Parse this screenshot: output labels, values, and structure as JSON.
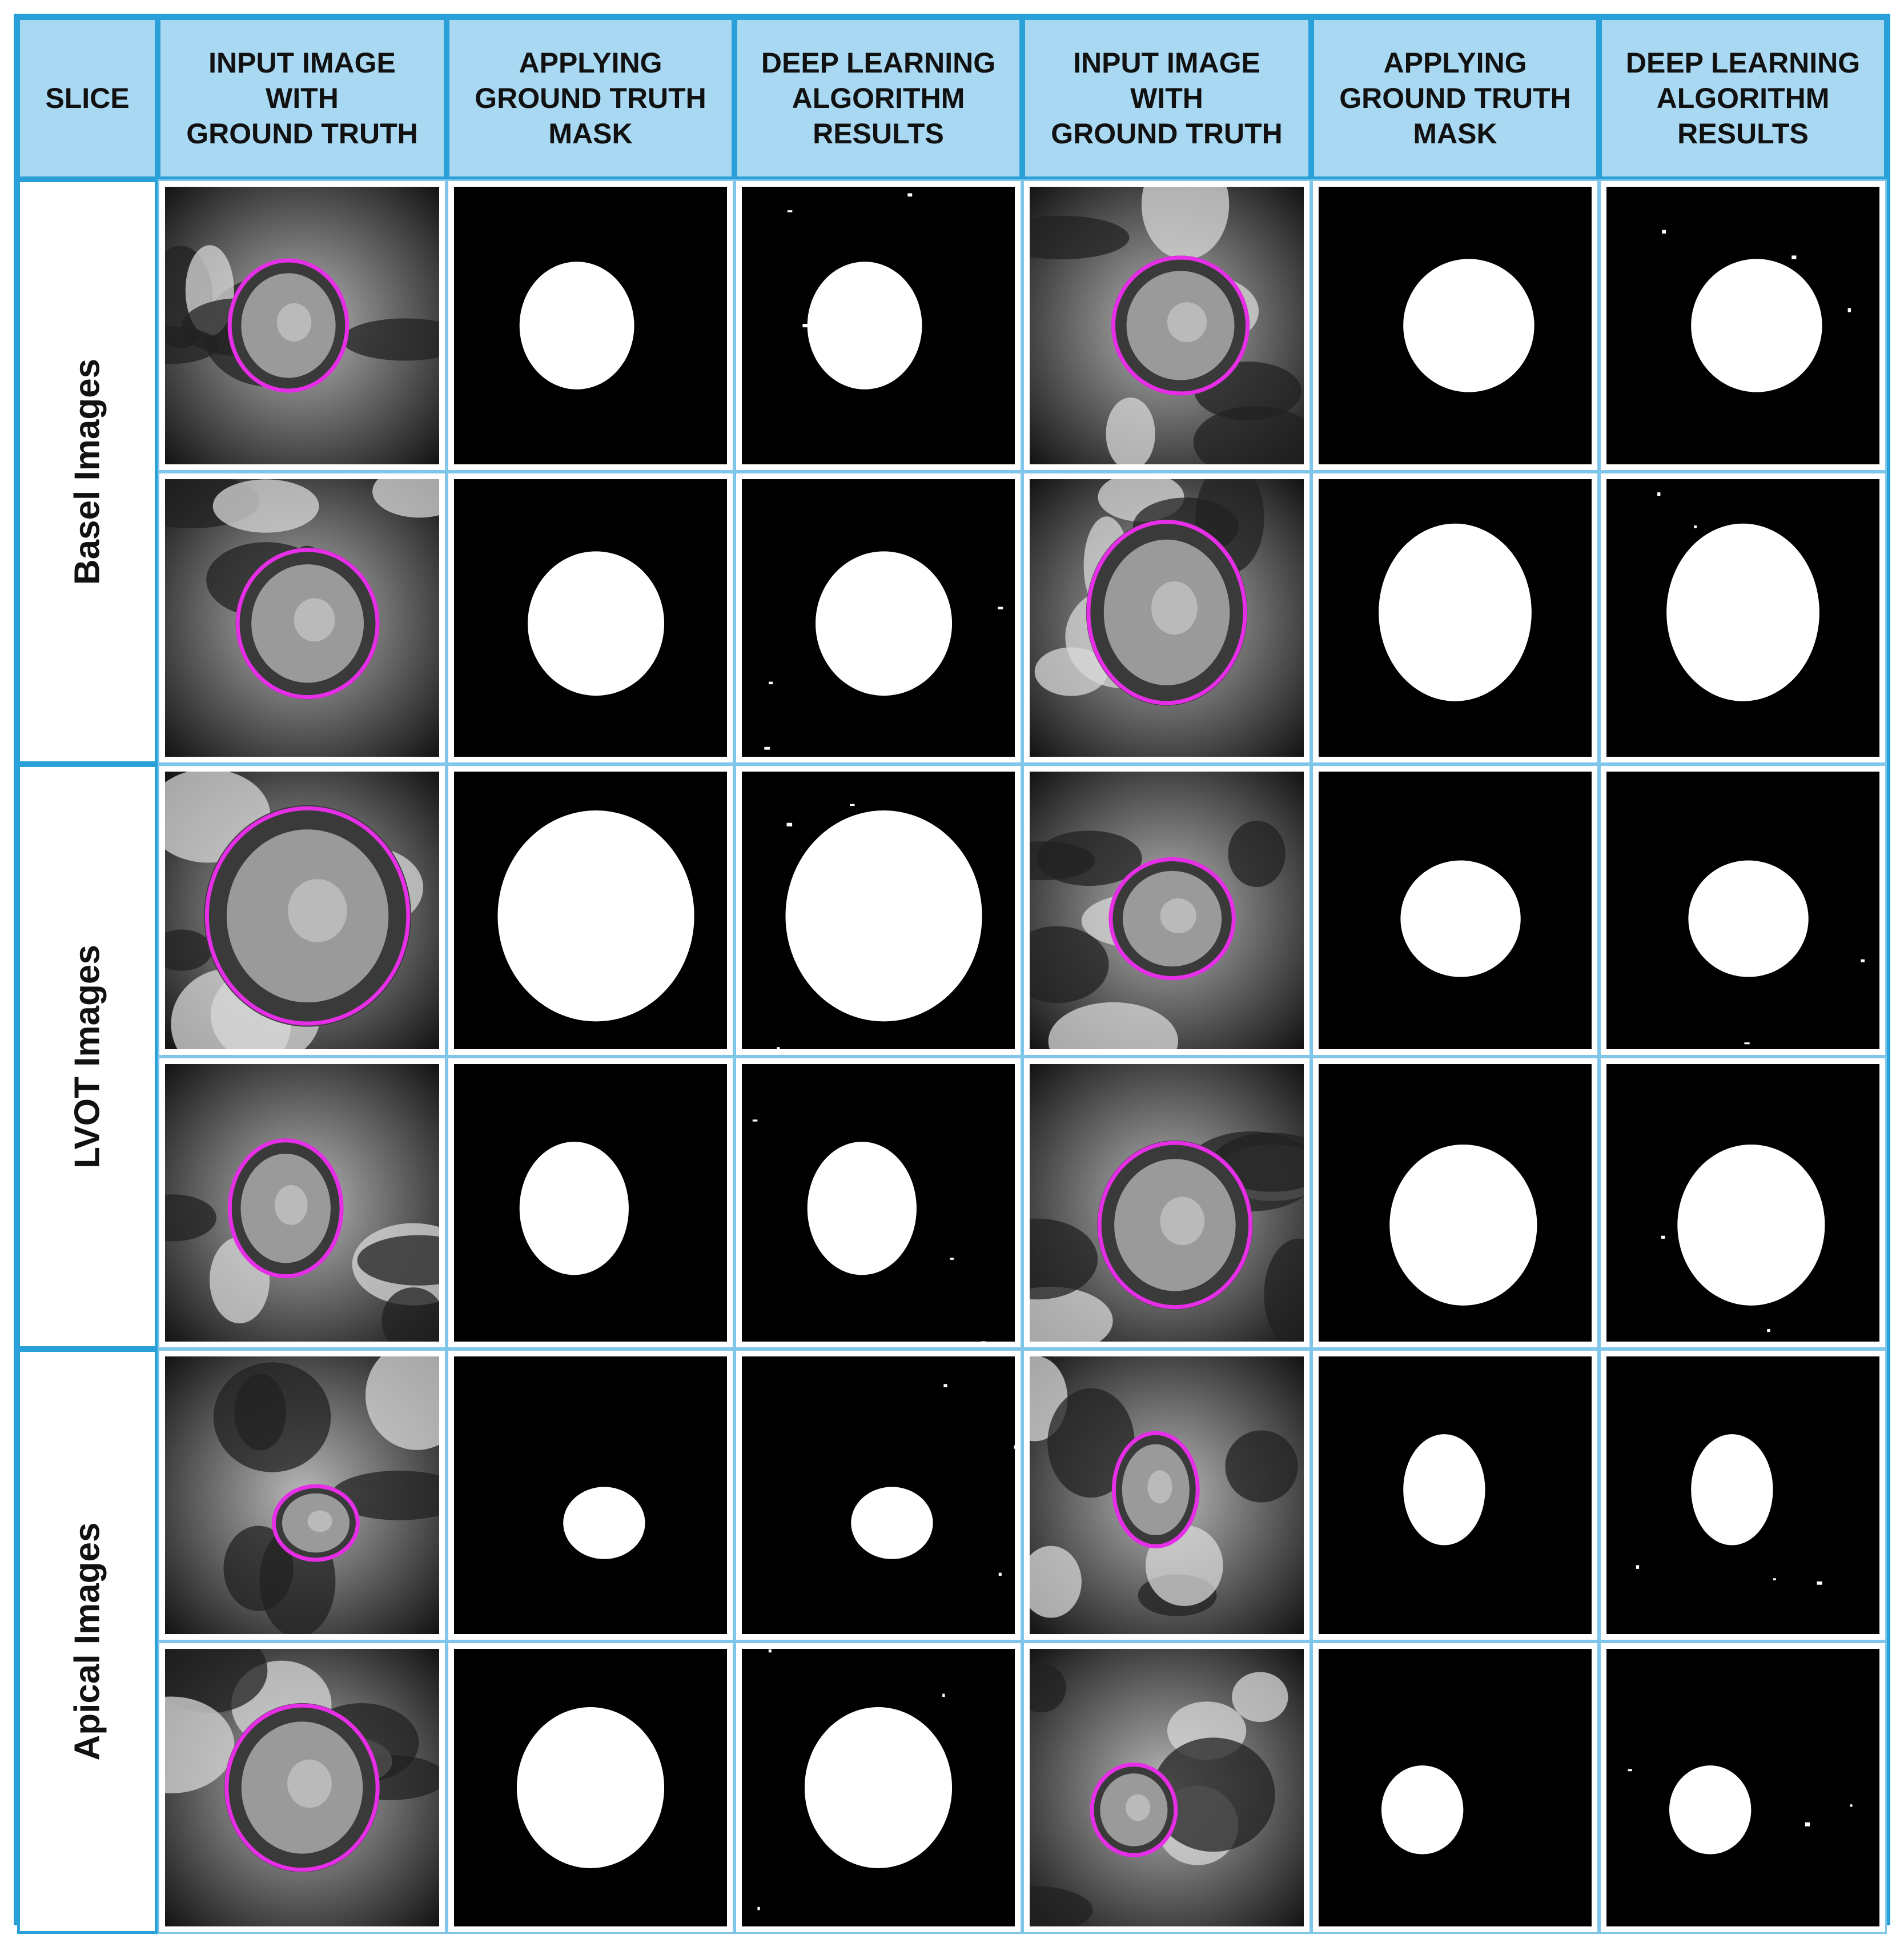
{
  "columns": [
    "SLICE",
    "INPUT IMAGE\nWITH\nGROUND TRUTH",
    "APPLYING\nGROUND TRUTH\nMASK",
    "DEEP LEARNING\nALGORITHM\nRESULTS",
    "INPUT IMAGE\nWITH\nGROUND TRUTH",
    "APPLYING\nGROUND TRUTH\nMASK",
    "DEEP LEARNING\nALGORITHM\nRESULTS"
  ],
  "row_groups": [
    "Basel Images",
    "LVOT  Images",
    "Apical Images"
  ],
  "colors": {
    "border": "#2aa0d8",
    "header_bg": "#a9d8f2",
    "contour": "#e62ee6",
    "mask_bg": "#000000",
    "mask_fg": "#ffffff"
  }
}
